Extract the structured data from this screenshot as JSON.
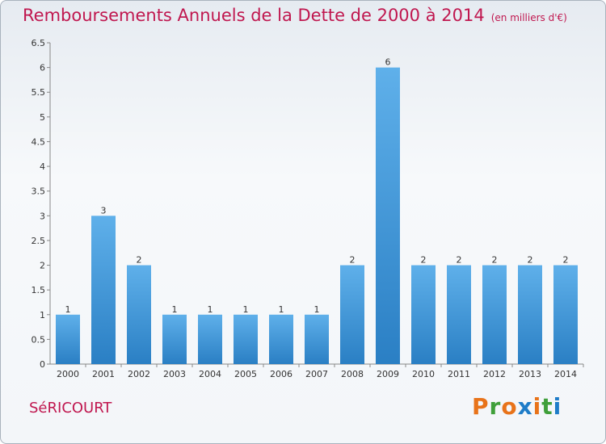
{
  "chart_data": {
    "type": "bar",
    "title": "Remboursements Annuels de la Dette de 2000 à 2014",
    "subtitle": "(en milliers d'€)",
    "categories": [
      "2000",
      "2001",
      "2002",
      "2003",
      "2004",
      "2005",
      "2006",
      "2007",
      "2008",
      "2009",
      "2010",
      "2011",
      "2012",
      "2013",
      "2014"
    ],
    "values": [
      1,
      3,
      2,
      1,
      1,
      1,
      1,
      1,
      2,
      6,
      2,
      2,
      2,
      2,
      2
    ],
    "data_labels": [
      "1",
      "3",
      "2",
      "1",
      "1",
      "1",
      "1",
      "1",
      "2",
      "6",
      "2",
      "2",
      "2",
      "2",
      "2"
    ],
    "y_ticks": [
      "0",
      "0.5",
      "1",
      "1.5",
      "2",
      "2.5",
      "3",
      "3.5",
      "4",
      "4.5",
      "5",
      "5.5",
      "6",
      "6.5"
    ],
    "ylim": [
      0,
      6.5
    ],
    "grid": false,
    "legend": "none",
    "bar_color": "#3d95d9"
  },
  "footer": {
    "commune": "SéRICOURT"
  },
  "logo": {
    "text": "Proxiti",
    "colors": [
      "#e8731a",
      "#3f9f3a",
      "#e8731a",
      "#1e7cc8",
      "#e8731a",
      "#3f9f3a",
      "#1e7cc8"
    ]
  }
}
